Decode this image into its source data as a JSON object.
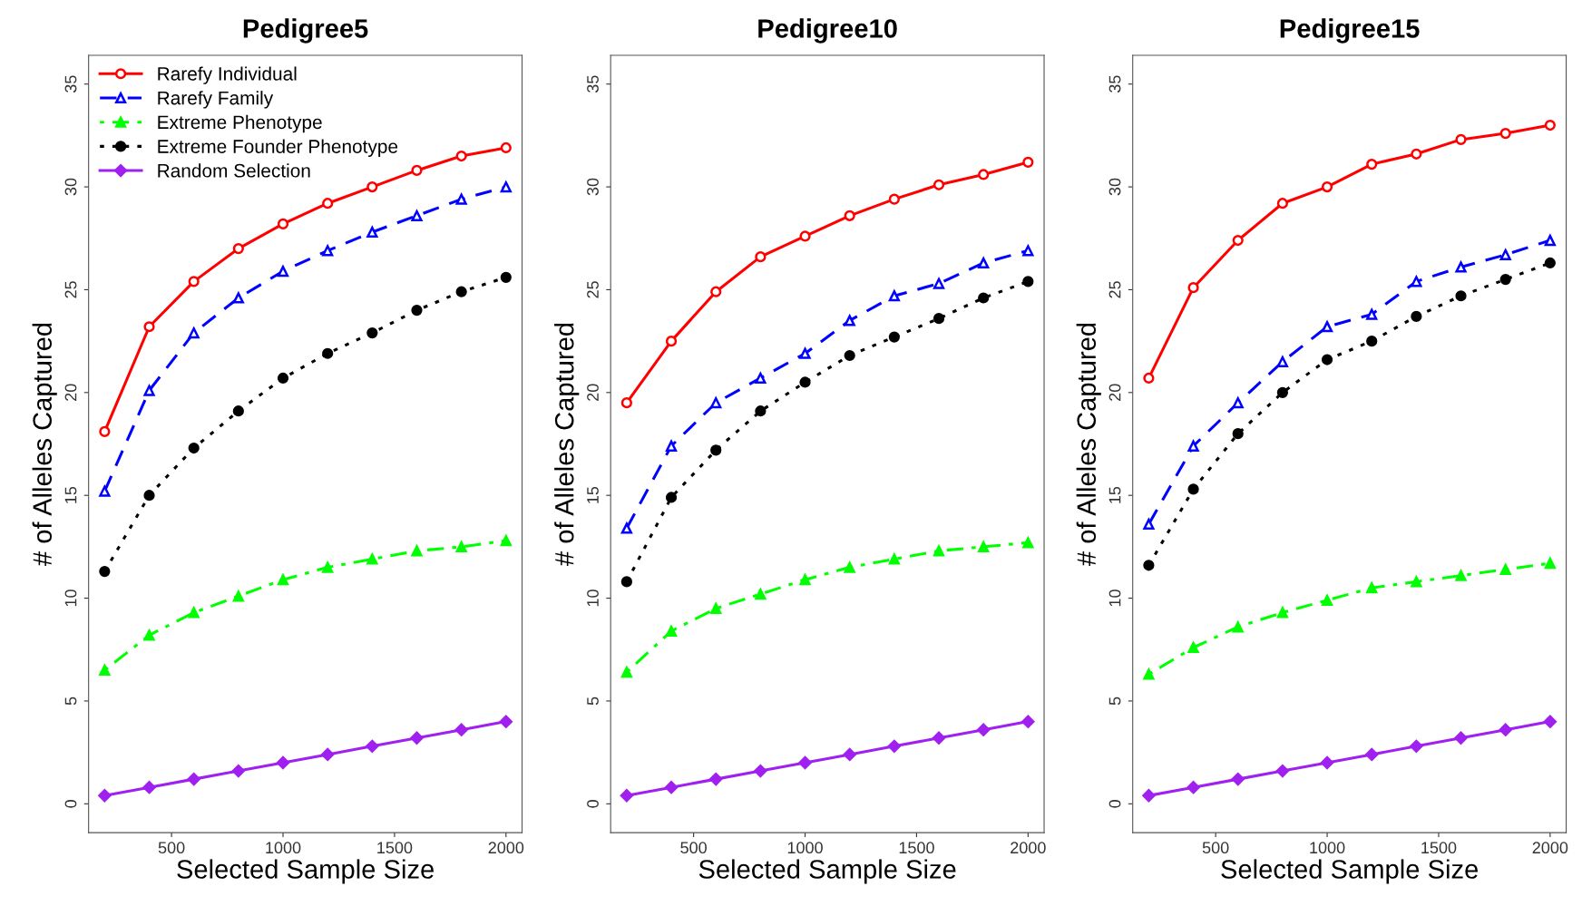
{
  "chart_data": [
    {
      "type": "line",
      "title": "Pedigree5",
      "xlabel": "Selected Sample Size",
      "ylabel": "# of Alleles Captured",
      "x": [
        200,
        400,
        600,
        800,
        1000,
        1200,
        1400,
        1600,
        1800,
        2000
      ],
      "xlim": [
        128,
        2072
      ],
      "ylim": [
        -1.4,
        36.4
      ],
      "xticks": [
        500,
        1000,
        1500,
        2000
      ],
      "yticks": [
        0,
        5,
        10,
        15,
        20,
        25,
        30,
        35
      ],
      "grid": false,
      "legend": "top left",
      "series": [
        {
          "name": "Rarefy Individual",
          "color": "#ff0000",
          "marker": "circle_open",
          "line_style": "solid",
          "values": [
            18.1,
            23.2,
            25.4,
            27.0,
            28.2,
            29.2,
            30.0,
            30.8,
            31.5,
            31.9
          ]
        },
        {
          "name": "Rarefy Family",
          "color": "#0000ff",
          "marker": "triangle_open",
          "line_style": "dashed",
          "values": [
            15.2,
            20.1,
            22.9,
            24.6,
            25.9,
            26.9,
            27.8,
            28.6,
            29.4,
            30.0
          ]
        },
        {
          "name": "Extreme Phenotype",
          "color": "#00ff00",
          "marker": "triangle",
          "line_style": "dashdot",
          "values": [
            6.5,
            8.2,
            9.3,
            10.1,
            10.9,
            11.5,
            11.9,
            12.3,
            12.5,
            12.8
          ]
        },
        {
          "name": "Extreme Founder Phenotype",
          "color": "#000000",
          "marker": "circle",
          "line_style": "dotted",
          "values": [
            11.3,
            15.0,
            17.3,
            19.1,
            20.7,
            21.9,
            22.9,
            24.0,
            24.9,
            25.6
          ]
        },
        {
          "name": "Random Selection",
          "color": "#a020f0",
          "marker": "diamond",
          "line_style": "solid",
          "values": [
            0.4,
            0.8,
            1.2,
            1.6,
            2.0,
            2.4,
            2.8,
            3.2,
            3.6,
            4.0
          ]
        }
      ]
    },
    {
      "type": "line",
      "title": "Pedigree10",
      "xlabel": "Selected Sample Size",
      "ylabel": "# of Alleles Captured",
      "x": [
        200,
        400,
        600,
        800,
        1000,
        1200,
        1400,
        1600,
        1800,
        2000
      ],
      "xlim": [
        128,
        2072
      ],
      "ylim": [
        -1.4,
        36.4
      ],
      "xticks": [
        500,
        1000,
        1500,
        2000
      ],
      "yticks": [
        0,
        5,
        10,
        15,
        20,
        25,
        30,
        35
      ],
      "grid": false,
      "series": [
        {
          "color": "#ff0000",
          "marker": "circle_open",
          "line_style": "solid",
          "values": [
            19.5,
            22.5,
            24.9,
            26.6,
            27.6,
            28.6,
            29.4,
            30.1,
            30.6,
            31.2
          ]
        },
        {
          "color": "#0000ff",
          "marker": "triangle_open",
          "line_style": "dashed",
          "values": [
            13.4,
            17.4,
            19.5,
            20.7,
            21.9,
            23.5,
            24.7,
            25.3,
            26.3,
            26.9
          ]
        },
        {
          "color": "#00ff00",
          "marker": "triangle",
          "line_style": "dashdot",
          "values": [
            6.4,
            8.4,
            9.5,
            10.2,
            10.9,
            11.5,
            11.9,
            12.3,
            12.5,
            12.7
          ]
        },
        {
          "color": "#000000",
          "marker": "circle",
          "line_style": "dotted",
          "values": [
            10.8,
            14.9,
            17.2,
            19.1,
            20.5,
            21.8,
            22.7,
            23.6,
            24.6,
            25.4
          ]
        },
        {
          "color": "#a020f0",
          "marker": "diamond",
          "line_style": "solid",
          "values": [
            0.4,
            0.8,
            1.2,
            1.6,
            2.0,
            2.4,
            2.8,
            3.2,
            3.6,
            4.0
          ]
        }
      ]
    },
    {
      "type": "line",
      "title": "Pedigree15",
      "xlabel": "Selected Sample Size",
      "ylabel": "# of Alleles Captured",
      "x": [
        200,
        400,
        600,
        800,
        1000,
        1200,
        1400,
        1600,
        1800,
        2000
      ],
      "xlim": [
        128,
        2072
      ],
      "ylim": [
        -1.4,
        36.4
      ],
      "xticks": [
        500,
        1000,
        1500,
        2000
      ],
      "yticks": [
        0,
        5,
        10,
        15,
        20,
        25,
        30,
        35
      ],
      "grid": false,
      "series": [
        {
          "color": "#ff0000",
          "marker": "circle_open",
          "line_style": "solid",
          "values": [
            20.7,
            25.1,
            27.4,
            29.2,
            30.0,
            31.1,
            31.6,
            32.3,
            32.6,
            33.0
          ]
        },
        {
          "color": "#0000ff",
          "marker": "triangle_open",
          "line_style": "dashed",
          "values": [
            13.6,
            17.4,
            19.5,
            21.5,
            23.2,
            23.8,
            25.4,
            26.1,
            26.7,
            27.4
          ]
        },
        {
          "color": "#00ff00",
          "marker": "triangle",
          "line_style": "dashdot",
          "values": [
            6.3,
            7.6,
            8.6,
            9.3,
            9.9,
            10.5,
            10.8,
            11.1,
            11.4,
            11.7
          ]
        },
        {
          "color": "#000000",
          "marker": "circle",
          "line_style": "dotted",
          "values": [
            11.6,
            15.3,
            18.0,
            20.0,
            21.6,
            22.5,
            23.7,
            24.7,
            25.5,
            26.3
          ]
        },
        {
          "color": "#a020f0",
          "marker": "diamond",
          "line_style": "solid",
          "values": [
            0.4,
            0.8,
            1.2,
            1.6,
            2.0,
            2.4,
            2.8,
            3.2,
            3.6,
            4.0
          ]
        }
      ]
    }
  ]
}
